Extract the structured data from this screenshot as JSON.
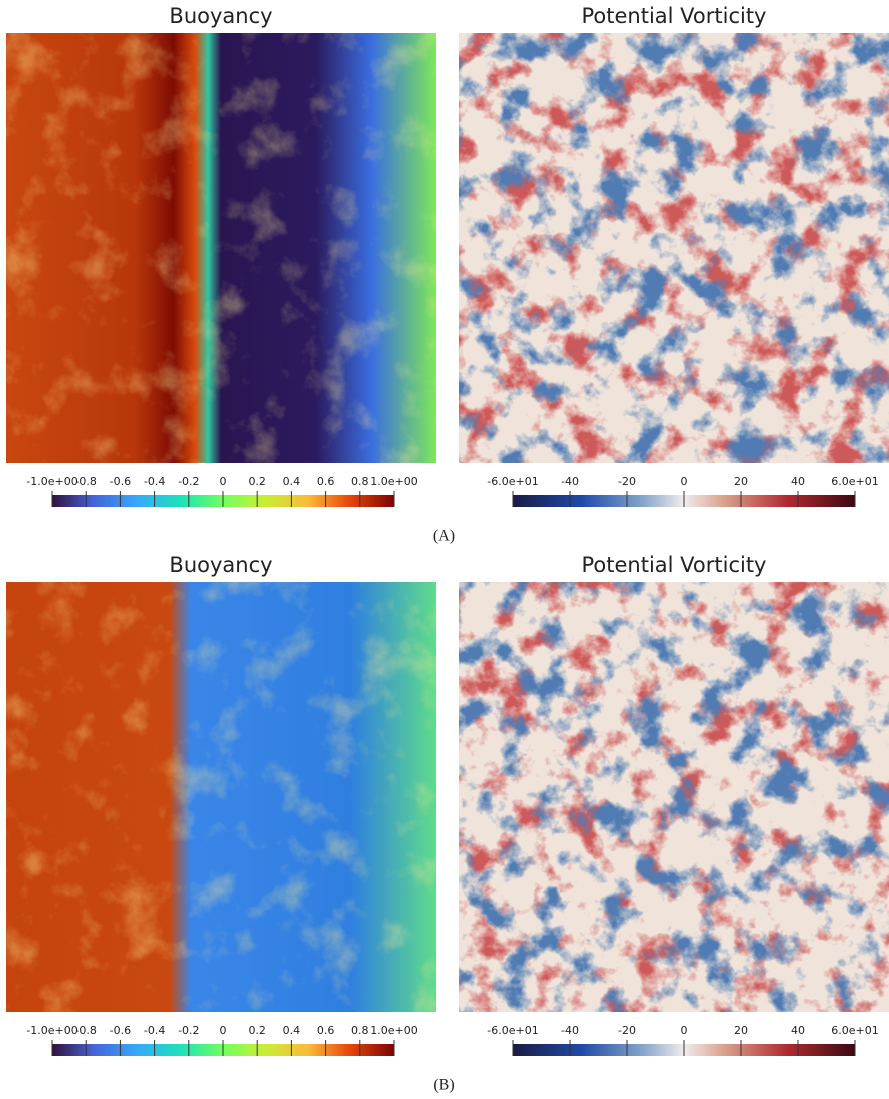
{
  "figures": [
    {
      "caption": "(A)",
      "panels": [
        {
          "title": "Buoyancy",
          "colormap": "turbo",
          "range": [
            -1,
            1
          ],
          "ticks": [
            {
              "value": -1,
              "label": "-1.0e+00"
            },
            -0.8,
            -0.6,
            -0.4,
            -0.2,
            0,
            0.2,
            0.4,
            0.6,
            0.8,
            {
              "value": 1,
              "label": "1.0e+00"
            }
          ]
        },
        {
          "title": "Potential Vorticity",
          "colormap": "balance",
          "range": [
            -60,
            60
          ],
          "ticks": [
            {
              "value": -60,
              "label": "-6.0e+01"
            },
            -40,
            -20,
            0,
            20,
            40,
            {
              "value": 60,
              "label": "6.0e+01"
            }
          ]
        }
      ]
    },
    {
      "caption": "(B)",
      "panels": [
        {
          "title": "Buoyancy",
          "colormap": "turbo",
          "range": [
            -1,
            1
          ],
          "ticks": [
            {
              "value": -1,
              "label": "-1.0e+00"
            },
            -0.8,
            -0.6,
            -0.4,
            -0.2,
            0,
            0.2,
            0.4,
            0.6,
            0.8,
            {
              "value": 1,
              "label": "1.0e+00"
            }
          ]
        },
        {
          "title": "Potential Vorticity",
          "colormap": "balance",
          "range": [
            -60,
            60
          ],
          "ticks": [
            {
              "value": -60,
              "label": "-6.0e+01"
            },
            -40,
            -20,
            0,
            20,
            40,
            {
              "value": 60,
              "label": "6.0e+01"
            }
          ]
        }
      ]
    }
  ]
}
